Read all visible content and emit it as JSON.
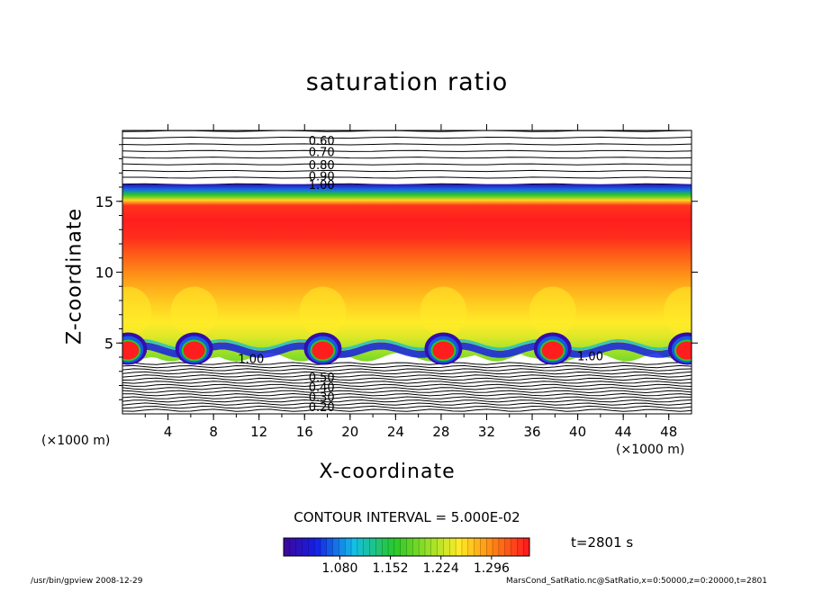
{
  "chart_data": {
    "type": "heatmap",
    "title": "saturation ratio",
    "xlabel": "X-coordinate",
    "ylabel": "Z-coordinate",
    "x_unit_left": "(×1000 m)",
    "x_unit_right": "(×1000 m)",
    "x_ticks": [
      4,
      8,
      12,
      16,
      20,
      24,
      28,
      32,
      36,
      40,
      44,
      48
    ],
    "y_ticks": [
      5,
      10,
      15
    ],
    "xlim": [
      0,
      50
    ],
    "ylim": [
      0,
      20
    ],
    "contour_labels": [
      {
        "text": "0.60",
        "x": 17.5,
        "z": 19.3
      },
      {
        "text": "0.70",
        "x": 17.5,
        "z": 18.5
      },
      {
        "text": "0.80",
        "x": 17.5,
        "z": 17.6
      },
      {
        "text": "0.90",
        "x": 17.5,
        "z": 16.8
      },
      {
        "text": "1.00",
        "x": 17.5,
        "z": 16.2
      },
      {
        "text": "1.00",
        "x": 11.3,
        "z": 3.9
      },
      {
        "text": "1.00",
        "x": 41.1,
        "z": 4.1
      },
      {
        "text": "0.20",
        "x": 17.5,
        "z": 0.5
      },
      {
        "text": "0.30",
        "x": 17.5,
        "z": 1.2
      },
      {
        "text": "0.40",
        "x": 17.5,
        "z": 1.9
      },
      {
        "text": "0.50",
        "x": 17.5,
        "z": 2.6
      }
    ],
    "colorbar": {
      "ticks": [
        "1.080",
        "1.152",
        "1.224",
        "1.296"
      ],
      "min": 1.0,
      "max": 1.35
    },
    "contour_interval": "CONTOUR INTERVAL = 5.000E-02",
    "time": "t=2801 s",
    "bubble_centers_x": [
      0.5,
      6.3,
      17.6,
      28.2,
      37.8,
      49.6
    ],
    "colors": {
      "low": "#3a0aa0",
      "high": "#ff2020"
    }
  },
  "footer": {
    "left": "/usr/bin/gpview   2008-12-29",
    "right": "MarsCond_SatRatio.nc@SatRatio,x=0:50000,z=0:20000,t=2801"
  }
}
